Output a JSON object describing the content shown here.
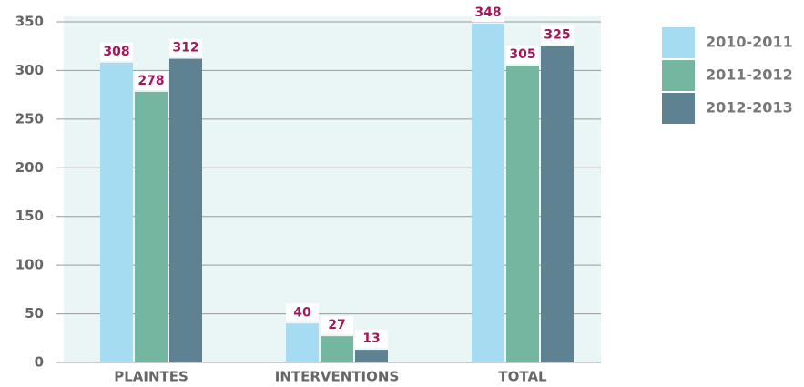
{
  "chart_data": {
    "type": "bar",
    "categories": [
      "PLAINTES",
      "INTERVENTIONS",
      "TOTAL"
    ],
    "series": [
      {
        "name": "2010-2011",
        "color": "#a5dcf2",
        "values": [
          308,
          40,
          348
        ]
      },
      {
        "name": "2011-2012",
        "color": "#74b6a0",
        "values": [
          278,
          27,
          305
        ]
      },
      {
        "name": "2012-2013",
        "color": "#5e8292",
        "values": [
          312,
          13,
          325
        ]
      }
    ],
    "ylim": [
      0,
      350
    ],
    "yticks": [
      0,
      50,
      100,
      150,
      200,
      250,
      300,
      350
    ],
    "grid": true,
    "legend": "right"
  }
}
